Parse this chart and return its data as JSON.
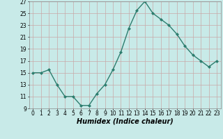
{
  "x": [
    0,
    1,
    2,
    3,
    4,
    5,
    6,
    7,
    8,
    9,
    10,
    11,
    12,
    13,
    14,
    15,
    16,
    17,
    18,
    19,
    20,
    21,
    22,
    23
  ],
  "y": [
    15,
    15,
    15.5,
    13,
    11,
    11,
    9.5,
    9.5,
    11.5,
    13,
    15.5,
    18.5,
    22.5,
    25.5,
    27,
    25,
    24,
    23,
    21.5,
    19.5,
    18,
    17,
    16,
    17
  ],
  "line_color": "#2d7d6e",
  "marker": "D",
  "marker_size": 2.0,
  "background_color": "#c8eae8",
  "grid_color": "#b0c8c8",
  "xlabel": "Humidex (Indice chaleur)",
  "xlabel_fontsize": 7,
  "ylim": [
    9,
    27
  ],
  "xlim": [
    -0.5,
    23.5
  ],
  "yticks": [
    9,
    11,
    13,
    15,
    17,
    19,
    21,
    23,
    25,
    27
  ],
  "xticks": [
    0,
    1,
    2,
    3,
    4,
    5,
    6,
    7,
    8,
    9,
    10,
    11,
    12,
    13,
    14,
    15,
    16,
    17,
    18,
    19,
    20,
    21,
    22,
    23
  ],
  "tick_fontsize": 5.5,
  "line_width": 1.0
}
